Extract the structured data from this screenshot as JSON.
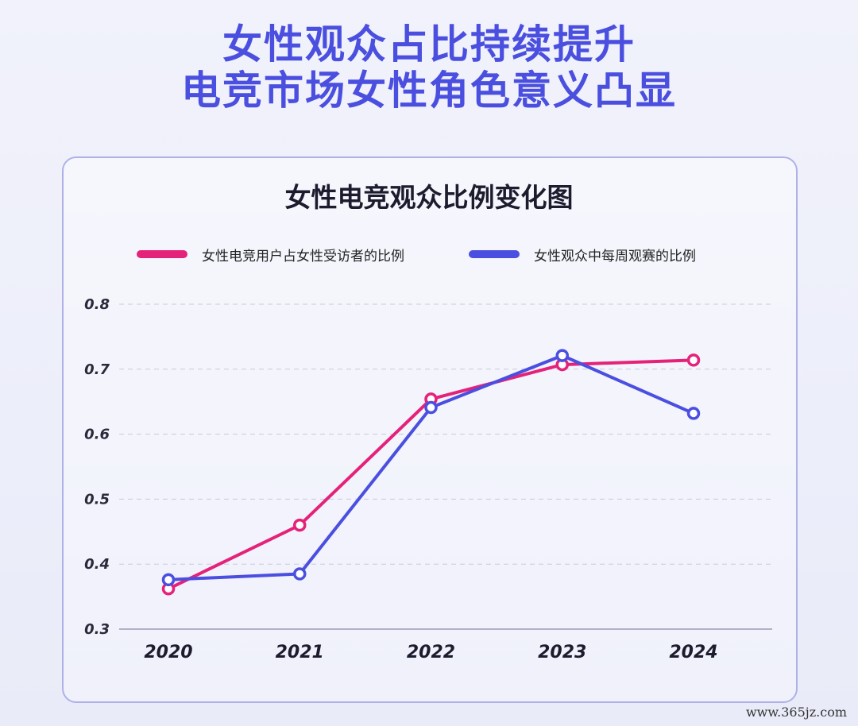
{
  "headline": {
    "line1": "女性观众占比持续提升",
    "line2": "电竞市场女性角色意义凸显"
  },
  "chart_data": {
    "type": "line",
    "title": "女性电竞观众比例变化图",
    "xlabel": "",
    "ylabel": "",
    "x": [
      "2020",
      "2021",
      "2022",
      "2023",
      "2024"
    ],
    "yticks": [
      "0.3",
      "0.4",
      "0.5",
      "0.6",
      "0.7",
      "0.8"
    ],
    "ylim": [
      0.3,
      0.8
    ],
    "grid": true,
    "legend_position": "top",
    "series": [
      {
        "name": "女性电竞用户占女性受访者的比例",
        "color": "#e5227a",
        "values": [
          0.362,
          0.46,
          0.654,
          0.707,
          0.714
        ]
      },
      {
        "name": "女性观众中每周观赛的比例",
        "color": "#4a4fe0",
        "values": [
          0.376,
          0.385,
          0.641,
          0.721,
          0.632
        ]
      }
    ]
  },
  "watermark": "www.365jz.com"
}
